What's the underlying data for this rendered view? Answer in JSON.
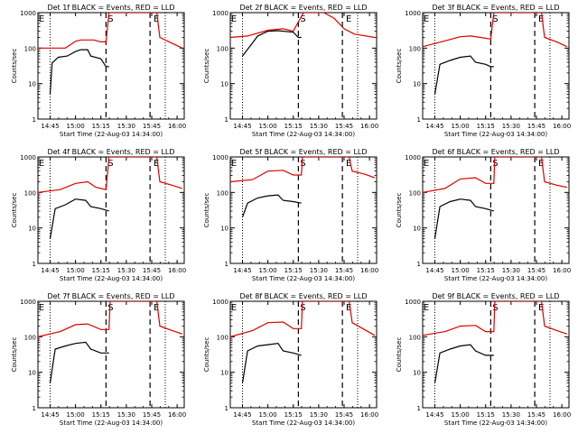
{
  "figure": {
    "xtick_labels": [
      "14:45",
      "15:00",
      "15:15",
      "15:30",
      "15:45",
      "16:00"
    ],
    "ytick_labels": [
      "1",
      "10",
      "100",
      "1000"
    ],
    "yaxis_type": "log",
    "ylim": [
      1,
      1000
    ],
    "colors": {
      "events": "#000000",
      "lld": "#dd0000",
      "axes": "#000000"
    }
  },
  "chart_data": [
    {
      "type": "line",
      "title": "Det 1f  BLACK = Events, RED = LLD",
      "xlabel": "Start Time (22-Aug-03 14:34:00)",
      "ylabel": "Counts/sec",
      "markers": {
        "dotted": [
          "14:45",
          "15:53"
        ],
        "dashed": [
          "15:18",
          "15:44"
        ],
        "labels": [
          "E",
          "S",
          "E"
        ]
      },
      "series": [
        {
          "name": "LLD",
          "color": "#dd0000",
          "values": [
            [
              14.63,
              100
            ],
            [
              14.9,
              100
            ],
            [
              15.0,
              155
            ],
            [
              15.05,
              170
            ],
            [
              15.18,
              170
            ],
            [
              15.25,
              150
            ],
            [
              15.3,
              150
            ],
            [
              15.33,
              1000
            ],
            [
              15.8,
              1000
            ],
            [
              15.83,
              200
            ],
            [
              15.9,
              160
            ],
            [
              16.05,
              100
            ]
          ]
        },
        {
          "name": "Events",
          "color": "#000000",
          "values": [
            [
              14.75,
              5
            ],
            [
              14.77,
              38
            ],
            [
              14.83,
              55
            ],
            [
              14.92,
              60
            ],
            [
              15.0,
              80
            ],
            [
              15.05,
              90
            ],
            [
              15.12,
              90
            ],
            [
              15.15,
              60
            ],
            [
              15.25,
              50
            ],
            [
              15.3,
              30
            ],
            [
              15.33,
              30
            ]
          ]
        }
      ]
    },
    {
      "type": "line",
      "title": "Det 2f  BLACK = Events, RED = LLD",
      "xlabel": "Start Time (22-Aug-03 14:34:00)",
      "ylabel": "Counts/sec",
      "markers": {
        "dotted": [
          "14:45",
          "15:53"
        ],
        "dashed": [
          "15:18",
          "15:44"
        ],
        "labels": [
          "E",
          "S",
          "E"
        ]
      },
      "series": [
        {
          "name": "LLD",
          "color": "#dd0000",
          "values": [
            [
              14.63,
              200
            ],
            [
              14.8,
              220
            ],
            [
              15.0,
              320
            ],
            [
              15.15,
              350
            ],
            [
              15.25,
              300
            ],
            [
              15.35,
              1000
            ],
            [
              15.55,
              1000
            ],
            [
              15.65,
              700
            ],
            [
              15.75,
              350
            ],
            [
              15.85,
              250
            ],
            [
              16.05,
              200
            ]
          ]
        },
        {
          "name": "Events",
          "color": "#000000",
          "values": [
            [
              14.75,
              60
            ],
            [
              14.9,
              220
            ],
            [
              15.0,
              300
            ],
            [
              15.1,
              310
            ],
            [
              15.25,
              280
            ],
            [
              15.3,
              200
            ],
            [
              15.33,
              200
            ]
          ]
        }
      ]
    },
    {
      "type": "line",
      "title": "Det 3f  BLACK = Events, RED = LLD",
      "xlabel": "Start Time (22-Aug-03 14:34:00)",
      "ylabel": "Counts/sec",
      "markers": {
        "dotted": [
          "14:45",
          "15:53"
        ],
        "dashed": [
          "15:18",
          "15:44"
        ],
        "labels": [
          "E",
          "S",
          "E"
        ]
      },
      "series": [
        {
          "name": "LLD",
          "color": "#dd0000",
          "values": [
            [
              14.63,
              110
            ],
            [
              14.85,
              160
            ],
            [
              15.0,
              210
            ],
            [
              15.1,
              220
            ],
            [
              15.2,
              200
            ],
            [
              15.3,
              180
            ],
            [
              15.33,
              1000
            ],
            [
              15.8,
              1000
            ],
            [
              15.83,
              200
            ],
            [
              15.95,
              150
            ],
            [
              16.05,
              110
            ]
          ]
        },
        {
          "name": "Events",
          "color": "#000000",
          "values": [
            [
              14.75,
              5
            ],
            [
              14.8,
              35
            ],
            [
              14.9,
              45
            ],
            [
              15.0,
              55
            ],
            [
              15.1,
              60
            ],
            [
              15.15,
              40
            ],
            [
              15.25,
              35
            ],
            [
              15.3,
              30
            ],
            [
              15.33,
              30
            ]
          ]
        }
      ]
    },
    {
      "type": "line",
      "title": "Det 4f  BLACK = Events, RED = LLD",
      "xlabel": "Start Time (22-Aug-03 14:34:00)",
      "ylabel": "Counts/sec",
      "markers": {
        "dotted": [
          "14:45",
          "15:53"
        ],
        "dashed": [
          "15:18",
          "15:44"
        ],
        "labels": [
          "E",
          "S",
          "E"
        ]
      },
      "series": [
        {
          "name": "LLD",
          "color": "#dd0000",
          "values": [
            [
              14.63,
              100
            ],
            [
              14.85,
              120
            ],
            [
              15.0,
              180
            ],
            [
              15.12,
              200
            ],
            [
              15.2,
              140
            ],
            [
              15.3,
              120
            ],
            [
              15.33,
              1000
            ],
            [
              15.8,
              1000
            ],
            [
              15.83,
              200
            ],
            [
              15.95,
              160
            ],
            [
              16.05,
              130
            ]
          ]
        },
        {
          "name": "Events",
          "color": "#000000",
          "values": [
            [
              14.75,
              5
            ],
            [
              14.8,
              35
            ],
            [
              14.9,
              45
            ],
            [
              15.0,
              65
            ],
            [
              15.1,
              60
            ],
            [
              15.15,
              40
            ],
            [
              15.25,
              35
            ],
            [
              15.33,
              30
            ]
          ]
        }
      ]
    },
    {
      "type": "line",
      "title": "Det 5f  BLACK = Events, RED = LLD",
      "xlabel": "Start Time (22-Aug-03 14:34:00)",
      "ylabel": "Counts/sec",
      "markers": {
        "dotted": [
          "14:45",
          "15:53"
        ],
        "dashed": [
          "15:18",
          "15:44"
        ],
        "labels": [
          "E",
          "S",
          "E"
        ]
      },
      "series": [
        {
          "name": "LLD",
          "color": "#dd0000",
          "values": [
            [
              14.63,
              200
            ],
            [
              14.85,
              230
            ],
            [
              15.0,
              400
            ],
            [
              15.15,
              420
            ],
            [
              15.25,
              310
            ],
            [
              15.33,
              310
            ],
            [
              15.34,
              1000
            ],
            [
              15.8,
              1000
            ],
            [
              15.83,
              400
            ],
            [
              15.95,
              330
            ],
            [
              16.05,
              260
            ]
          ]
        },
        {
          "name": "Events",
          "color": "#000000",
          "values": [
            [
              14.75,
              20
            ],
            [
              14.8,
              50
            ],
            [
              14.9,
              70
            ],
            [
              15.0,
              80
            ],
            [
              15.1,
              85
            ],
            [
              15.15,
              60
            ],
            [
              15.25,
              55
            ],
            [
              15.33,
              50
            ]
          ]
        }
      ]
    },
    {
      "type": "line",
      "title": "Det 6f  BLACK = Events, RED = LLD",
      "xlabel": "Start Time (22-Aug-03 14:34:00)",
      "ylabel": "Counts/sec",
      "markers": {
        "dotted": [
          "14:45",
          "15:53"
        ],
        "dashed": [
          "15:18",
          "15:44"
        ],
        "labels": [
          "E",
          "S",
          "E"
        ]
      },
      "series": [
        {
          "name": "LLD",
          "color": "#dd0000",
          "values": [
            [
              14.63,
              100
            ],
            [
              14.85,
              130
            ],
            [
              15.0,
              240
            ],
            [
              15.15,
              260
            ],
            [
              15.25,
              180
            ],
            [
              15.33,
              180
            ],
            [
              15.34,
              1000
            ],
            [
              15.8,
              1000
            ],
            [
              15.83,
              200
            ],
            [
              15.95,
              160
            ],
            [
              16.05,
              140
            ]
          ]
        },
        {
          "name": "Events",
          "color": "#000000",
          "values": [
            [
              14.75,
              5
            ],
            [
              14.8,
              40
            ],
            [
              14.9,
              55
            ],
            [
              15.0,
              65
            ],
            [
              15.1,
              60
            ],
            [
              15.15,
              40
            ],
            [
              15.25,
              35
            ],
            [
              15.33,
              30
            ]
          ]
        }
      ]
    },
    {
      "type": "line",
      "title": "Det 7f  BLACK = Events, RED = LLD",
      "xlabel": "Start Time (22-Aug-03 14:34:00)",
      "ylabel": "Counts/sec",
      "markers": {
        "dotted": [
          "14:45",
          "15:53"
        ],
        "dashed": [
          "15:18",
          "15:44"
        ],
        "labels": [
          "E",
          "S",
          "E"
        ]
      },
      "series": [
        {
          "name": "LLD",
          "color": "#dd0000",
          "values": [
            [
              14.63,
              100
            ],
            [
              14.85,
              140
            ],
            [
              15.0,
              220
            ],
            [
              15.12,
              230
            ],
            [
              15.25,
              160
            ],
            [
              15.33,
              160
            ],
            [
              15.34,
              1000
            ],
            [
              15.8,
              1000
            ],
            [
              15.83,
              200
            ],
            [
              15.95,
              150
            ],
            [
              16.05,
              120
            ]
          ]
        },
        {
          "name": "Events",
          "color": "#000000",
          "values": [
            [
              14.75,
              5
            ],
            [
              14.8,
              45
            ],
            [
              14.9,
              55
            ],
            [
              15.0,
              65
            ],
            [
              15.1,
              70
            ],
            [
              15.15,
              45
            ],
            [
              15.25,
              35
            ],
            [
              15.33,
              35
            ]
          ]
        }
      ]
    },
    {
      "type": "line",
      "title": "Det 8f  BLACK = Events, RED = LLD",
      "xlabel": "Start Time (22-Aug-03 14:34:00)",
      "ylabel": "Counts/sec",
      "markers": {
        "dotted": [
          "14:45",
          "15:53"
        ],
        "dashed": [
          "15:18",
          "15:44"
        ],
        "labels": [
          "E",
          "S",
          "E"
        ]
      },
      "series": [
        {
          "name": "LLD",
          "color": "#dd0000",
          "values": [
            [
              14.63,
              100
            ],
            [
              14.85,
              150
            ],
            [
              15.0,
              250
            ],
            [
              15.15,
              260
            ],
            [
              15.25,
              170
            ],
            [
              15.33,
              170
            ],
            [
              15.34,
              1000
            ],
            [
              15.8,
              1000
            ],
            [
              15.83,
              250
            ],
            [
              15.95,
              160
            ],
            [
              16.05,
              110
            ]
          ]
        },
        {
          "name": "Events",
          "color": "#000000",
          "values": [
            [
              14.75,
              5
            ],
            [
              14.8,
              40
            ],
            [
              14.9,
              55
            ],
            [
              15.0,
              60
            ],
            [
              15.1,
              65
            ],
            [
              15.15,
              40
            ],
            [
              15.25,
              35
            ],
            [
              15.33,
              30
            ]
          ]
        }
      ]
    },
    {
      "type": "line",
      "title": "Det 9f  BLACK = Events, RED = LLD",
      "xlabel": "Start Time (22-Aug-03 14:34:00)",
      "ylabel": "Counts/sec",
      "markers": {
        "dotted": [
          "14:45",
          "15:53"
        ],
        "dashed": [
          "15:18",
          "15:44"
        ],
        "labels": [
          "E",
          "S",
          "E"
        ]
      },
      "series": [
        {
          "name": "LLD",
          "color": "#dd0000",
          "values": [
            [
              14.63,
              110
            ],
            [
              14.85,
              140
            ],
            [
              15.0,
              200
            ],
            [
              15.15,
              210
            ],
            [
              15.25,
              140
            ],
            [
              15.33,
              140
            ],
            [
              15.34,
              1000
            ],
            [
              15.8,
              1000
            ],
            [
              15.83,
              200
            ],
            [
              15.95,
              150
            ],
            [
              16.05,
              120
            ]
          ]
        },
        {
          "name": "Events",
          "color": "#000000",
          "values": [
            [
              14.75,
              5
            ],
            [
              14.8,
              35
            ],
            [
              14.9,
              45
            ],
            [
              15.0,
              55
            ],
            [
              15.1,
              60
            ],
            [
              15.15,
              40
            ],
            [
              15.25,
              30
            ],
            [
              15.33,
              30
            ]
          ]
        }
      ]
    }
  ]
}
